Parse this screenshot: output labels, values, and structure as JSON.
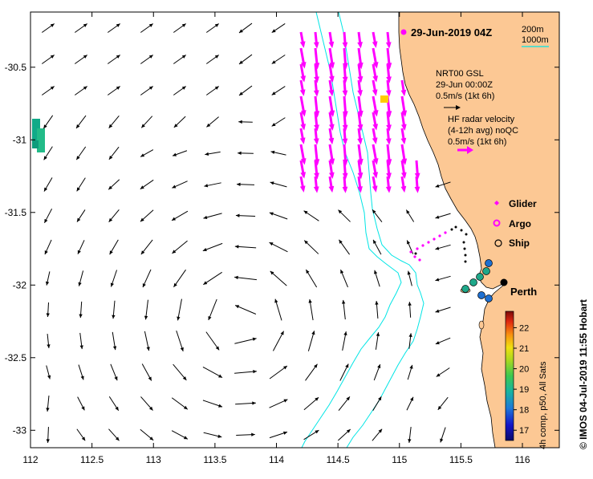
{
  "map": {
    "title": "29-Jun-2019 04Z",
    "credit": "© IMOS 04-Jul-2019 11:55 Hobart",
    "axes": {
      "lon_ticks": [
        "112",
        "112.5",
        "113",
        "113.5",
        "114",
        "114.5",
        "115",
        "115.5",
        "116"
      ],
      "lon_values": [
        112,
        112.5,
        113,
        113.5,
        114,
        114.5,
        115,
        115.5,
        116
      ],
      "lat_ticks": [
        "-30.5",
        "-31",
        "-31.5",
        "-32",
        "-32.5",
        "-33"
      ],
      "lat_values": [
        -30.5,
        -31,
        -31.5,
        -32,
        -32.5,
        -33
      ],
      "lon_range": [
        112,
        116.3
      ],
      "lat_range": [
        -30.12,
        -33.12
      ]
    },
    "isobath_legend": {
      "shallow": "200m",
      "deep": "1000m"
    },
    "model_legend": {
      "line1": "NRT00 GSL",
      "line2": "29-Jun 00:00Z",
      "line3": "0.5m/s (1kt 6h)"
    },
    "radar_legend": {
      "line1": "HF radar velocity",
      "line2": "(4-12h avg) noQC",
      "line3": "0.5m/s (1kt 6h)"
    },
    "platforms": {
      "glider": "Glider",
      "argo": "Argo",
      "ship": "Ship"
    },
    "city": "Perth",
    "colorbar": {
      "label": "4h comp, p50, All Sats",
      "ticks": [
        "17",
        "18",
        "19",
        "20",
        "21",
        "22"
      ],
      "min": 16.5,
      "max": 22.8
    },
    "colors": {
      "land": "#FCC894",
      "isobath": "#00E5E5",
      "radar": "#FF00FF",
      "model_arrow": "#000000"
    }
  }
}
